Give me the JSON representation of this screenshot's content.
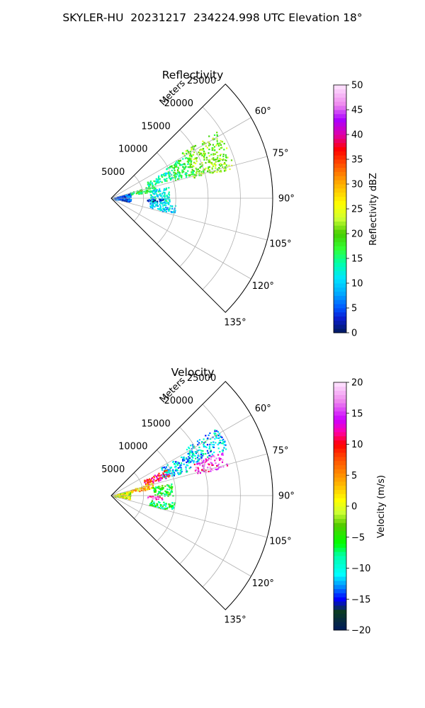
{
  "title": "SKYLER-HU  20231217  234224.998 UTC Elevation 18°",
  "chart_data": [
    {
      "type": "heatmap",
      "subtype": "polar-sector",
      "title": "Reflectivity",
      "radial_axis_label": "Meters",
      "radial_ticks": [
        5000,
        10000,
        15000,
        20000,
        25000
      ],
      "radial_tick_labels": [
        "5000",
        "10000",
        "15000",
        "20000",
        "25000"
      ],
      "rmax": 25000,
      "angle_range_deg": [
        45,
        135
      ],
      "angle_ticks_deg": [
        60,
        75,
        90,
        105,
        120,
        135
      ],
      "angle_tick_labels": [
        "60°",
        "75°",
        "90°",
        "105°",
        "120°",
        "135°"
      ],
      "grid": true,
      "colorbar": {
        "label": "Reflectivity dBZ",
        "min": 0,
        "max": 50,
        "ticks": [
          0,
          5,
          10,
          15,
          20,
          25,
          30,
          35,
          40,
          45,
          50
        ],
        "tick_labels": [
          "0",
          "5",
          "10",
          "15",
          "20",
          "25",
          "30",
          "35",
          "40",
          "45",
          "50"
        ]
      },
      "echo_regions": [
        {
          "az": [
            57,
            76
          ],
          "r": [
            13000,
            19500
          ],
          "value": 21
        },
        {
          "az": [
            60,
            74
          ],
          "r": [
            9500,
            13500
          ],
          "value": 17
        },
        {
          "az": [
            64,
            72
          ],
          "r": [
            6000,
            10000
          ],
          "value": 14
        },
        {
          "az": [
            72,
            80
          ],
          "r": [
            3000,
            7000
          ],
          "value": 17
        },
        {
          "az": [
            78,
            96
          ],
          "r": [
            6000,
            9000
          ],
          "value": 12
        },
        {
          "az": [
            96,
            104
          ],
          "r": [
            6000,
            10000
          ],
          "value": 10
        },
        {
          "az": [
            74,
            100
          ],
          "r": [
            300,
            3000
          ],
          "value": 5
        },
        {
          "az": [
            90,
            94
          ],
          "r": [
            5500,
            8000
          ],
          "value": 3
        }
      ]
    },
    {
      "type": "heatmap",
      "subtype": "polar-sector",
      "title": "Velocity",
      "radial_axis_label": "Meters",
      "radial_ticks": [
        5000,
        10000,
        15000,
        20000,
        25000
      ],
      "radial_tick_labels": [
        "5000",
        "10000",
        "15000",
        "20000",
        "25000"
      ],
      "rmax": 25000,
      "angle_range_deg": [
        45,
        135
      ],
      "angle_ticks_deg": [
        60,
        75,
        90,
        105,
        120,
        135
      ],
      "angle_tick_labels": [
        "60°",
        "75°",
        "90°",
        "105°",
        "120°",
        "135°"
      ],
      "grid": true,
      "colorbar": {
        "label": "Velocity (m/s)",
        "min": -20,
        "max": 20,
        "ticks": [
          -20,
          -15,
          -10,
          -5,
          0,
          5,
          10,
          15,
          20
        ],
        "tick_labels": [
          "−20",
          "−15",
          "−10",
          "−5",
          "0",
          "5",
          "10",
          "15",
          "20"
        ]
      },
      "echo_regions": [
        {
          "az": [
            57,
            68
          ],
          "r": [
            13000,
            19500
          ],
          "value": -11
        },
        {
          "az": [
            68,
            76
          ],
          "r": [
            13500,
            18500
          ],
          "value": 14
        },
        {
          "az": [
            60,
            72
          ],
          "r": [
            8500,
            13000
          ],
          "value": -11
        },
        {
          "az": [
            64,
            72
          ],
          "r": [
            5500,
            9500
          ],
          "value": 10
        },
        {
          "az": [
            72,
            80
          ],
          "r": [
            3000,
            7000
          ],
          "value": 3
        },
        {
          "az": [
            78,
            90
          ],
          "r": [
            6500,
            9500
          ],
          "value": -5
        },
        {
          "az": [
            96,
            104
          ],
          "r": [
            6000,
            10000
          ],
          "value": -7
        },
        {
          "az": [
            74,
            100
          ],
          "r": [
            300,
            3000
          ],
          "value": 0
        },
        {
          "az": [
            90,
            94
          ],
          "r": [
            5500,
            8000
          ],
          "value": 15
        }
      ]
    }
  ]
}
